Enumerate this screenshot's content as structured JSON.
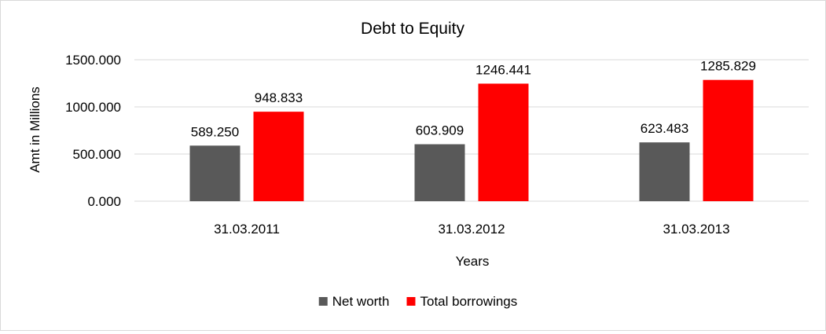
{
  "chart_data": {
    "type": "bar",
    "title": "Debt to Equity",
    "xlabel": "Years",
    "ylabel": "Amt in Millions",
    "categories": [
      "31.03.2011",
      "31.03.2012",
      "31.03.2013"
    ],
    "series": [
      {
        "name": "Net worth",
        "values": [
          589.25,
          603.909,
          623.483
        ],
        "labels": [
          "589.250",
          "603.909",
          "623.483"
        ],
        "color": "#595959"
      },
      {
        "name": "Total borrowings",
        "values": [
          948.833,
          1246.441,
          1285.829
        ],
        "labels": [
          "948.833",
          "1246.441",
          "1285.829"
        ],
        "color": "#ff0000"
      }
    ],
    "ylim": [
      0,
      1500
    ],
    "yticks": [
      0,
      500,
      1000,
      1500
    ],
    "ytick_labels": [
      "0.000",
      "500.000",
      "1000.000",
      "1500.000"
    ],
    "grid": true,
    "gridline_color": "#d9d9d9",
    "legend_position": "bottom"
  }
}
